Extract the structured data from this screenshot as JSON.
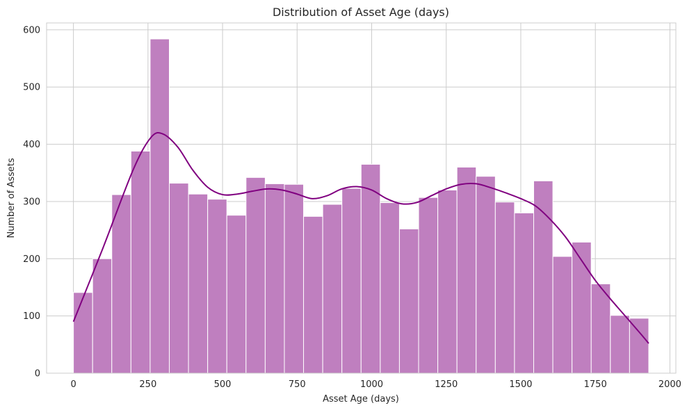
{
  "chart_data": {
    "type": "bar",
    "subtype": "histogram-with-kde",
    "title": "Distribution of Asset Age (days)",
    "xlabel": "Asset Age (days)",
    "ylabel": "Number of Assets",
    "xlim": [
      -90,
      2020
    ],
    "ylim": [
      0,
      612
    ],
    "x_ticks": [
      0,
      250,
      500,
      750,
      1000,
      1250,
      1500,
      1750,
      2000
    ],
    "y_ticks": [
      0,
      100,
      200,
      300,
      400,
      500,
      600
    ],
    "grid": true,
    "colors": {
      "bar": "#bf7fbf",
      "bar_edge": "#ffffff",
      "kde": "#800080",
      "grid": "#cccccc"
    },
    "bin_edges": [
      0,
      64.3,
      128.6,
      192.9,
      257.2,
      321.5,
      385.8,
      450.1,
      514.4,
      578.7,
      643.0,
      707.3,
      771.6,
      835.9,
      900.2,
      964.5,
      1028.8,
      1093.1,
      1157.4,
      1221.7,
      1286.0,
      1350.3,
      1414.6,
      1478.9,
      1543.2,
      1607.5,
      1671.8,
      1736.1,
      1800.4,
      1864.7,
      1929.0
    ],
    "counts": [
      141,
      200,
      312,
      388,
      584,
      332,
      313,
      304,
      276,
      342,
      331,
      330,
      274,
      295,
      323,
      365,
      298,
      252,
      307,
      320,
      360,
      344,
      299,
      280,
      336,
      204,
      229,
      156,
      101,
      96
    ],
    "kde": {
      "x": [
        0,
        100,
        200,
        260,
        300,
        350,
        400,
        450,
        500,
        550,
        600,
        650,
        700,
        750,
        800,
        850,
        900,
        950,
        1000,
        1050,
        1100,
        1150,
        1200,
        1250,
        1300,
        1350,
        1400,
        1450,
        1500,
        1550,
        1600,
        1650,
        1700,
        1750,
        1800,
        1850,
        1900,
        1929
      ],
      "y": [
        90,
        220,
        355,
        412,
        418,
        395,
        355,
        325,
        312,
        313,
        318,
        322,
        320,
        313,
        305,
        310,
        322,
        326,
        320,
        305,
        296,
        298,
        310,
        322,
        330,
        331,
        324,
        315,
        305,
        292,
        268,
        238,
        200,
        162,
        130,
        100,
        70,
        52
      ]
    }
  }
}
